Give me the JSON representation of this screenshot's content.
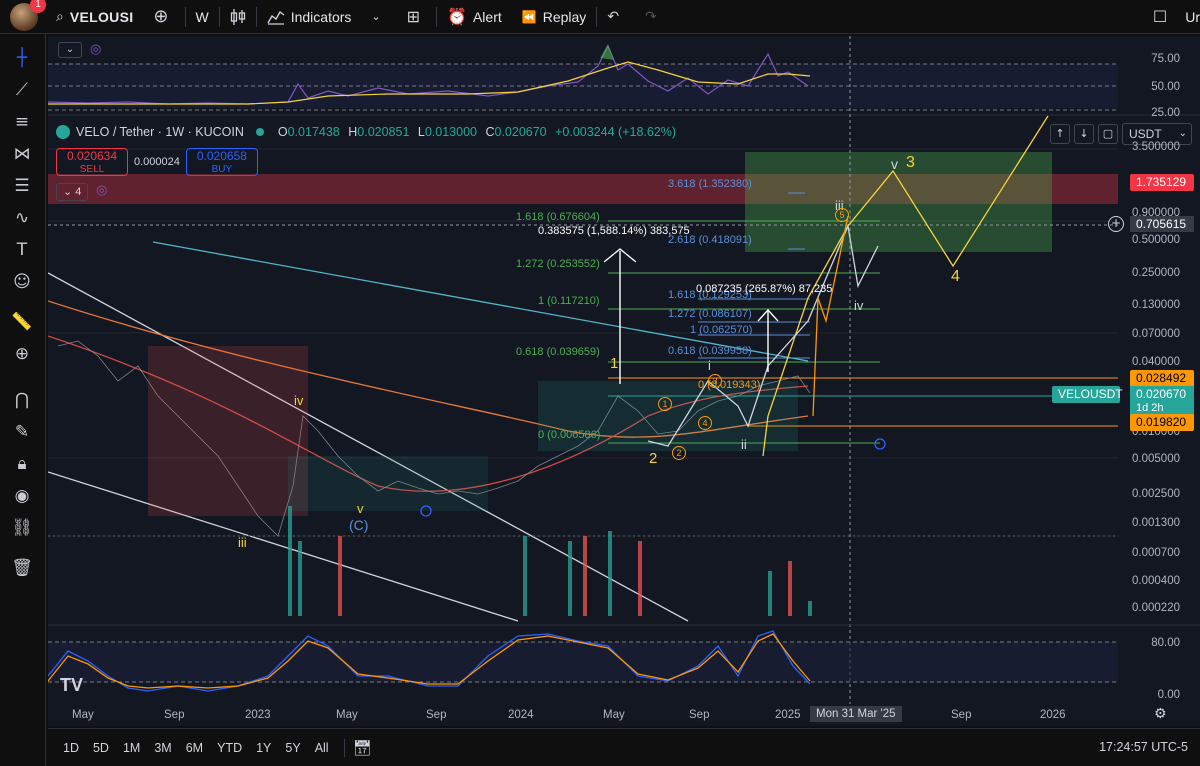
{
  "toolbar": {
    "notification_count": "1",
    "symbol": "VELOUSI",
    "interval": "W",
    "indicators": "Indicators",
    "alert": "Alert",
    "replay": "Replay",
    "right_cut": "Ur"
  },
  "legend": {
    "title": "VELO / Tether · 1W · KUCOIN",
    "open": "0.017438",
    "high": "0.020851",
    "low": "0.013000",
    "close": "0.020670",
    "change": "+0.003244 (+18.62%)",
    "o": "O",
    "h": "H",
    "l": "L",
    "c": "C",
    "indicator_count": "4"
  },
  "trade": {
    "sell_price": "0.020634",
    "sell_label": "SELL",
    "spread": "0.000024",
    "buy_price": "0.020658",
    "buy_label": "BUY"
  },
  "currency": "USDT",
  "price_axis": [
    "3.500000",
    "0.900000",
    "0.500000",
    "0.250000",
    "0.130000",
    "0.070000",
    "0.040000",
    "0.010000",
    "0.005000",
    "0.002500",
    "0.001300",
    "0.000700",
    "0.000400",
    "0.000220"
  ],
  "rsi_axis": [
    "75.00",
    "50.00",
    "25.00"
  ],
  "stoch_axis": [
    "80.00",
    "0.00"
  ],
  "price_labels": {
    "fib_top": "1.735129",
    "crosshair": "0.705615",
    "orange_line": "0.028492",
    "ticker": "VELOUSDT",
    "current": "0.020670",
    "countdown": "1d 2h",
    "support": "0.019820"
  },
  "fib_levels": [
    {
      "label": "3.618 (1.352380)"
    },
    {
      "label": "1.618 (0.676604)"
    },
    {
      "label": "2.618 (0.418091)"
    },
    {
      "label": "1.272 (0.253552)"
    },
    {
      "label": "1 (0.117210)"
    },
    {
      "label": "1.618 (0.129253)"
    },
    {
      "label": "1.272 (0.086107)"
    },
    {
      "label": "1 (0.062570)"
    },
    {
      "label": "0.618 (0.039659)"
    },
    {
      "label": "0.618 (0.039958)"
    },
    {
      "label": "0 (0.006586)"
    },
    {
      "label": "0 (0.019343)"
    }
  ],
  "measure": {
    "big": "0.383575 (1,588.14%) 383,575",
    "small": "0.087235 (265.87%) 87,235"
  },
  "wave_labels": {
    "iv_early": "iv",
    "v_early": "v",
    "iii_bottom": "iii",
    "c_label": "(C)",
    "w1": "1",
    "w2": "2",
    "w3": "3",
    "w4": "4",
    "v3": "v",
    "i": "i",
    "ii": "ii",
    "iii_top": "iii",
    "iv_white": "iv",
    "c1": "1",
    "c2": "2",
    "c3": "3",
    "c4": "4",
    "c5": "5"
  },
  "time_axis": [
    "May",
    "Sep",
    "2023",
    "May",
    "Sep",
    "2024",
    "May",
    "Sep",
    "2025",
    "Sep",
    "2026"
  ],
  "crosshair_date": "Mon 31 Mar '25",
  "bottombar": {
    "ranges": [
      "1D",
      "5D",
      "1M",
      "3M",
      "6M",
      "YTD",
      "1Y",
      "5Y",
      "All"
    ],
    "clock": "17:24:57 UTC-5"
  },
  "colors": {
    "bg": "#131722",
    "green": "#26a69a",
    "red": "#ef5350",
    "orange": "#ff9800",
    "yellow": "#f5d33a",
    "rsi_line": "#7e57c2",
    "fib_red_zone": "#f23645",
    "fib_green_zone": "#4caf50"
  }
}
